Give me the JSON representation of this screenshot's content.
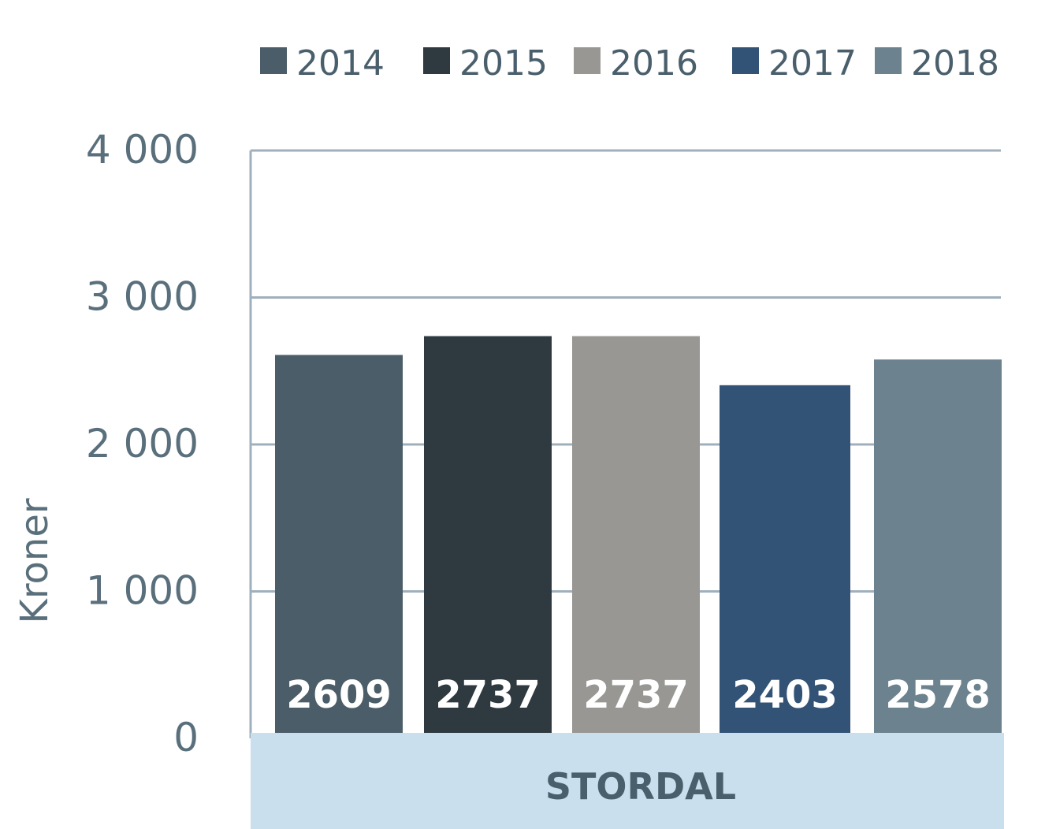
{
  "chart_data": {
    "type": "bar",
    "categories": [
      "STORDAL"
    ],
    "series": [
      {
        "name": "2014",
        "values": [
          2609
        ],
        "color": "#4b5d68"
      },
      {
        "name": "2015",
        "values": [
          2737
        ],
        "color": "#2e3a40"
      },
      {
        "name": "2016",
        "values": [
          2737
        ],
        "color": "#989794"
      },
      {
        "name": "2017",
        "values": [
          2403
        ],
        "color": "#335376"
      },
      {
        "name": "2018",
        "values": [
          2578
        ],
        "color": "#6c828e"
      }
    ],
    "ylabel": "Kroner",
    "ylim": [
      0,
      4000
    ],
    "yticks": [
      {
        "value": 0,
        "label": "0"
      },
      {
        "value": 1000,
        "label": "1 000"
      },
      {
        "value": 2000,
        "label": "2 000"
      },
      {
        "value": 3000,
        "label": "3 000"
      },
      {
        "value": 4000,
        "label": "4 000"
      }
    ],
    "grid": true,
    "legend_position": "top-right",
    "category_band_color": "#c9dfed",
    "gridline_color": "#9fb0bc"
  }
}
